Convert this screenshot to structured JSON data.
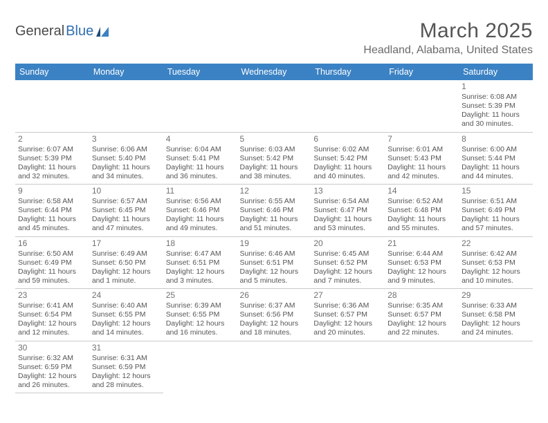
{
  "brand": {
    "part1": "General",
    "part2": "Blue"
  },
  "title": "March 2025",
  "location": "Headland, Alabama, United States",
  "header_color": "#3b82c4",
  "rule_color": "#2f6fb0",
  "text_color": "#555555",
  "font_family": "Arial",
  "dayHeaders": [
    "Sunday",
    "Monday",
    "Tuesday",
    "Wednesday",
    "Thursday",
    "Friday",
    "Saturday"
  ],
  "weeks": [
    [
      null,
      null,
      null,
      null,
      null,
      null,
      {
        "d": "1",
        "sr": "Sunrise: 6:08 AM",
        "ss": "Sunset: 5:39 PM",
        "dl": "Daylight: 11 hours and 30 minutes."
      }
    ],
    [
      {
        "d": "2",
        "sr": "Sunrise: 6:07 AM",
        "ss": "Sunset: 5:39 PM",
        "dl": "Daylight: 11 hours and 32 minutes."
      },
      {
        "d": "3",
        "sr": "Sunrise: 6:06 AM",
        "ss": "Sunset: 5:40 PM",
        "dl": "Daylight: 11 hours and 34 minutes."
      },
      {
        "d": "4",
        "sr": "Sunrise: 6:04 AM",
        "ss": "Sunset: 5:41 PM",
        "dl": "Daylight: 11 hours and 36 minutes."
      },
      {
        "d": "5",
        "sr": "Sunrise: 6:03 AM",
        "ss": "Sunset: 5:42 PM",
        "dl": "Daylight: 11 hours and 38 minutes."
      },
      {
        "d": "6",
        "sr": "Sunrise: 6:02 AM",
        "ss": "Sunset: 5:42 PM",
        "dl": "Daylight: 11 hours and 40 minutes."
      },
      {
        "d": "7",
        "sr": "Sunrise: 6:01 AM",
        "ss": "Sunset: 5:43 PM",
        "dl": "Daylight: 11 hours and 42 minutes."
      },
      {
        "d": "8",
        "sr": "Sunrise: 6:00 AM",
        "ss": "Sunset: 5:44 PM",
        "dl": "Daylight: 11 hours and 44 minutes."
      }
    ],
    [
      {
        "d": "9",
        "sr": "Sunrise: 6:58 AM",
        "ss": "Sunset: 6:44 PM",
        "dl": "Daylight: 11 hours and 45 minutes."
      },
      {
        "d": "10",
        "sr": "Sunrise: 6:57 AM",
        "ss": "Sunset: 6:45 PM",
        "dl": "Daylight: 11 hours and 47 minutes."
      },
      {
        "d": "11",
        "sr": "Sunrise: 6:56 AM",
        "ss": "Sunset: 6:46 PM",
        "dl": "Daylight: 11 hours and 49 minutes."
      },
      {
        "d": "12",
        "sr": "Sunrise: 6:55 AM",
        "ss": "Sunset: 6:46 PM",
        "dl": "Daylight: 11 hours and 51 minutes."
      },
      {
        "d": "13",
        "sr": "Sunrise: 6:54 AM",
        "ss": "Sunset: 6:47 PM",
        "dl": "Daylight: 11 hours and 53 minutes."
      },
      {
        "d": "14",
        "sr": "Sunrise: 6:52 AM",
        "ss": "Sunset: 6:48 PM",
        "dl": "Daylight: 11 hours and 55 minutes."
      },
      {
        "d": "15",
        "sr": "Sunrise: 6:51 AM",
        "ss": "Sunset: 6:49 PM",
        "dl": "Daylight: 11 hours and 57 minutes."
      }
    ],
    [
      {
        "d": "16",
        "sr": "Sunrise: 6:50 AM",
        "ss": "Sunset: 6:49 PM",
        "dl": "Daylight: 11 hours and 59 minutes."
      },
      {
        "d": "17",
        "sr": "Sunrise: 6:49 AM",
        "ss": "Sunset: 6:50 PM",
        "dl": "Daylight: 12 hours and 1 minute."
      },
      {
        "d": "18",
        "sr": "Sunrise: 6:47 AM",
        "ss": "Sunset: 6:51 PM",
        "dl": "Daylight: 12 hours and 3 minutes."
      },
      {
        "d": "19",
        "sr": "Sunrise: 6:46 AM",
        "ss": "Sunset: 6:51 PM",
        "dl": "Daylight: 12 hours and 5 minutes."
      },
      {
        "d": "20",
        "sr": "Sunrise: 6:45 AM",
        "ss": "Sunset: 6:52 PM",
        "dl": "Daylight: 12 hours and 7 minutes."
      },
      {
        "d": "21",
        "sr": "Sunrise: 6:44 AM",
        "ss": "Sunset: 6:53 PM",
        "dl": "Daylight: 12 hours and 9 minutes."
      },
      {
        "d": "22",
        "sr": "Sunrise: 6:42 AM",
        "ss": "Sunset: 6:53 PM",
        "dl": "Daylight: 12 hours and 10 minutes."
      }
    ],
    [
      {
        "d": "23",
        "sr": "Sunrise: 6:41 AM",
        "ss": "Sunset: 6:54 PM",
        "dl": "Daylight: 12 hours and 12 minutes."
      },
      {
        "d": "24",
        "sr": "Sunrise: 6:40 AM",
        "ss": "Sunset: 6:55 PM",
        "dl": "Daylight: 12 hours and 14 minutes."
      },
      {
        "d": "25",
        "sr": "Sunrise: 6:39 AM",
        "ss": "Sunset: 6:55 PM",
        "dl": "Daylight: 12 hours and 16 minutes."
      },
      {
        "d": "26",
        "sr": "Sunrise: 6:37 AM",
        "ss": "Sunset: 6:56 PM",
        "dl": "Daylight: 12 hours and 18 minutes."
      },
      {
        "d": "27",
        "sr": "Sunrise: 6:36 AM",
        "ss": "Sunset: 6:57 PM",
        "dl": "Daylight: 12 hours and 20 minutes."
      },
      {
        "d": "28",
        "sr": "Sunrise: 6:35 AM",
        "ss": "Sunset: 6:57 PM",
        "dl": "Daylight: 12 hours and 22 minutes."
      },
      {
        "d": "29",
        "sr": "Sunrise: 6:33 AM",
        "ss": "Sunset: 6:58 PM",
        "dl": "Daylight: 12 hours and 24 minutes."
      }
    ],
    [
      {
        "d": "30",
        "sr": "Sunrise: 6:32 AM",
        "ss": "Sunset: 6:59 PM",
        "dl": "Daylight: 12 hours and 26 minutes."
      },
      {
        "d": "31",
        "sr": "Sunrise: 6:31 AM",
        "ss": "Sunset: 6:59 PM",
        "dl": "Daylight: 12 hours and 28 minutes."
      },
      null,
      null,
      null,
      null,
      null
    ]
  ]
}
